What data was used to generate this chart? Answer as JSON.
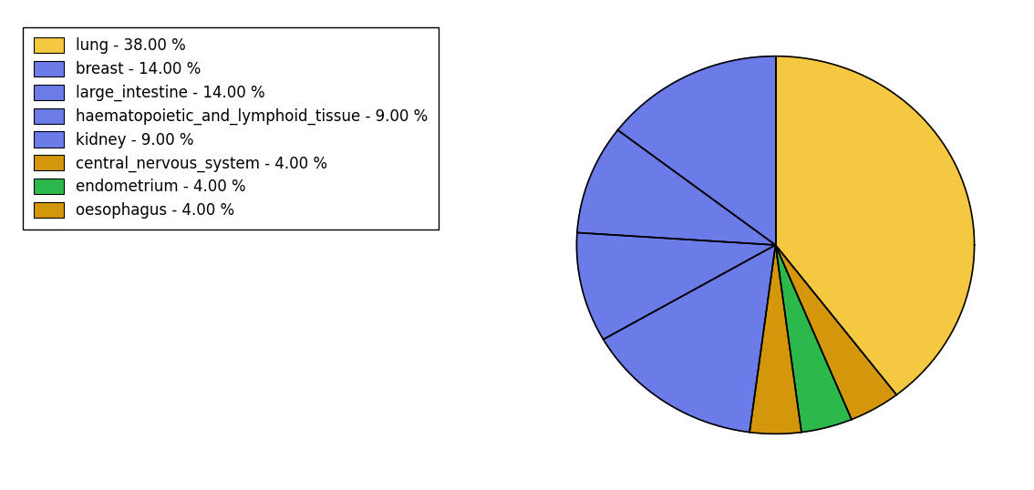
{
  "labels": [
    "lung",
    "oesophagus",
    "endometrium",
    "central_nervous_system",
    "breast",
    "haematopoietic_and_lymphoid_tissue",
    "kidney",
    "large_intestine"
  ],
  "values": [
    38,
    4,
    4,
    4,
    14,
    9,
    9,
    14
  ],
  "colors": [
    "#F5C842",
    "#D4960A",
    "#2DB84B",
    "#D4960A",
    "#6B7CE8",
    "#6B7CE8",
    "#6B7CE8",
    "#6B7CE8"
  ],
  "legend_order_labels": [
    "lung - 38.00 %",
    "breast - 14.00 %",
    "large_intestine - 14.00 %",
    "haematopoietic_and_lymphoid_tissue - 9.00 %",
    "kidney - 9.00 %",
    "central_nervous_system - 4.00 %",
    "endometrium - 4.00 %",
    "oesophagus - 4.00 %"
  ],
  "legend_order_colors": [
    "#F5C842",
    "#6B7CE8",
    "#6B7CE8",
    "#6B7CE8",
    "#6B7CE8",
    "#D4960A",
    "#2DB84B",
    "#D4960A"
  ],
  "figsize": [
    11.34,
    5.38
  ],
  "dpi": 100,
  "legend_fontsize": 12,
  "edge_color": "black",
  "edge_linewidth": 1.2
}
